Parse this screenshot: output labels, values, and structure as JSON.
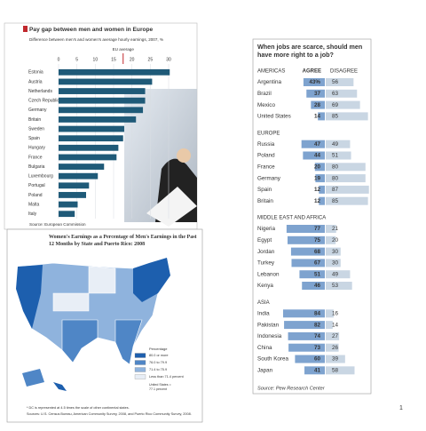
{
  "chart_data": [
    {
      "type": "bar",
      "title": "Pay gap between men and women in Europe",
      "subtitle": "Difference between men's and women's average hourly earnings, 2007, %",
      "categories": [
        "Estonia",
        "Austria",
        "Netherlands",
        "Czech Republic",
        "Germany",
        "Britain",
        "Sweden",
        "Spain",
        "Hungary",
        "France",
        "Bulgaria",
        "Luxembourg",
        "Portugal",
        "Poland",
        "Malta",
        "Italy"
      ],
      "values": [
        30.3,
        25.5,
        23.6,
        23.6,
        23.0,
        21.1,
        17.9,
        17.6,
        16.3,
        15.8,
        12.4,
        10.7,
        8.3,
        7.5,
        5.2,
        4.4
      ],
      "color": "#1f5a78",
      "xlim": [
        0,
        31
      ],
      "xticks": [
        0,
        5,
        10,
        15,
        20,
        25,
        30
      ],
      "annotations": [
        {
          "text": "EU average",
          "value": 17.6
        }
      ],
      "source": "Source: European Commission"
    },
    {
      "type": "map",
      "title": "Women's Earnings as a Percentage of Men's Earnings in the Past 12 Months by State and Puerto Rico: 2008",
      "legend_title": "Percentage",
      "legend": [
        {
          "name": "80.0 or more",
          "color": "#1d5fae"
        },
        {
          "name": "76.0 to 79.9",
          "color": "#4f86c6"
        },
        {
          "name": "71.4 to 75.9",
          "color": "#8fb3dd"
        },
        {
          "name": "Less than 71.4 percent",
          "color": "#e8eef6"
        }
      ],
      "us_note": "United States = 77.1 percent",
      "footnote": "* DC is represented at 4.5 times the scale of other continental states.",
      "source": "Sources: U.S. Census Bureau, American Community Survey, 2008, and Puerto Rico Community Survey, 2008."
    },
    {
      "type": "diverging_bar",
      "title": "When jobs are scarce, should men have more right to a job?",
      "series": [
        {
          "name": "AGREE",
          "color": "#7ea3cf"
        },
        {
          "name": "DISAGREE",
          "color": "#c9d6e3"
        }
      ],
      "groups": [
        {
          "name": "AMERICAS",
          "categories": [
            "Argentina",
            "Brazil",
            "Mexico",
            "United States"
          ],
          "values": [
            [
              43,
              56
            ],
            [
              37,
              63
            ],
            [
              28,
              69
            ],
            [
              14,
              85
            ]
          ],
          "value_labels": [
            [
              "43%",
              "56"
            ],
            [
              "37",
              "63"
            ],
            [
              "28",
              "69"
            ],
            [
              "14",
              "85"
            ]
          ]
        },
        {
          "name": "EUROPE",
          "categories": [
            "Russia",
            "Poland",
            "France",
            "Germany",
            "Spain",
            "Britain"
          ],
          "values": [
            [
              47,
              49
            ],
            [
              44,
              51
            ],
            [
              20,
              80
            ],
            [
              19,
              80
            ],
            [
              12,
              87
            ],
            [
              12,
              85
            ]
          ]
        },
        {
          "name": "MIDDLE EAST AND AFRICA",
          "categories": [
            "Nigeria",
            "Egypt",
            "Jordan",
            "Turkey",
            "Lebanon",
            "Kenya"
          ],
          "values": [
            [
              77,
              21
            ],
            [
              75,
              20
            ],
            [
              68,
              30
            ],
            [
              67,
              30
            ],
            [
              51,
              49
            ],
            [
              46,
              53
            ]
          ]
        },
        {
          "name": "ASIA",
          "categories": [
            "India",
            "Pakistan",
            "Indonesia",
            "China",
            "South Korea",
            "Japan"
          ],
          "values": [
            [
              84,
              16
            ],
            [
              82,
              14
            ],
            [
              74,
              27
            ],
            [
              73,
              26
            ],
            [
              60,
              39
            ],
            [
              41,
              58
            ]
          ]
        }
      ],
      "source": "Source: Pew Research Center"
    }
  ],
  "page_number": "1"
}
